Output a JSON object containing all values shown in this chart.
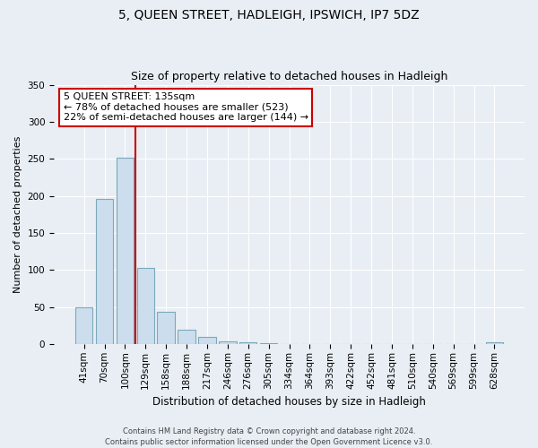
{
  "title": "5, QUEEN STREET, HADLEIGH, IPSWICH, IP7 5DZ",
  "subtitle": "Size of property relative to detached houses in Hadleigh",
  "xlabel": "Distribution of detached houses by size in Hadleigh",
  "ylabel": "Number of detached properties",
  "bar_labels": [
    "41sqm",
    "70sqm",
    "100sqm",
    "129sqm",
    "158sqm",
    "188sqm",
    "217sqm",
    "246sqm",
    "276sqm",
    "305sqm",
    "334sqm",
    "364sqm",
    "393sqm",
    "422sqm",
    "452sqm",
    "481sqm",
    "510sqm",
    "540sqm",
    "569sqm",
    "599sqm",
    "628sqm"
  ],
  "bar_values": [
    50,
    196,
    252,
    103,
    43,
    19,
    9,
    4,
    2,
    1,
    0,
    0,
    0,
    0,
    0,
    0,
    0,
    0,
    0,
    0,
    2
  ],
  "bar_color": "#ccdded",
  "bar_edge_color": "#7aaabb",
  "vline_color": "#cc0000",
  "annotation_text": "5 QUEEN STREET: 135sqm\n← 78% of detached houses are smaller (523)\n22% of semi-detached houses are larger (144) →",
  "annotation_box_facecolor": "#ffffff",
  "annotation_box_edgecolor": "#cc0000",
  "ylim": [
    0,
    350
  ],
  "yticks": [
    0,
    50,
    100,
    150,
    200,
    250,
    300,
    350
  ],
  "footer_text": "Contains HM Land Registry data © Crown copyright and database right 2024.\nContains public sector information licensed under the Open Government Licence v3.0.",
  "background_color": "#e8eef4",
  "plot_background": "#e8eef4",
  "title_fontsize": 10,
  "subtitle_fontsize": 9,
  "xlabel_fontsize": 8.5,
  "ylabel_fontsize": 8,
  "tick_fontsize": 7.5,
  "annotation_fontsize": 8,
  "footer_fontsize": 6
}
